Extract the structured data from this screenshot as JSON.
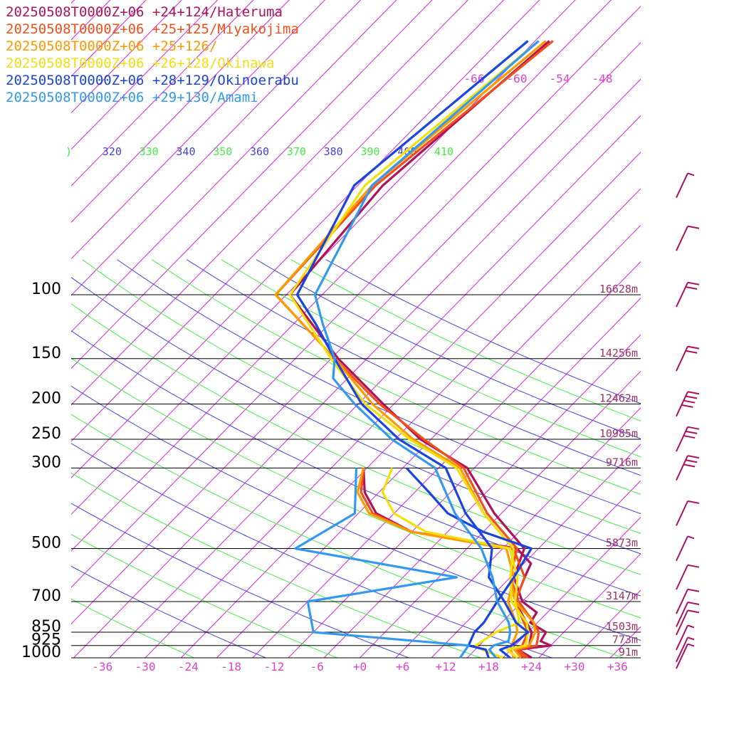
{
  "chart_data": {
    "type": "line",
    "title": "",
    "xlabel": "",
    "ylabel": "",
    "x_unit": "°C",
    "y_unit": "hPa",
    "y_scale": "log",
    "xlim": [
      -40,
      40
    ],
    "ylim": [
      1000,
      100
    ],
    "skew": true,
    "x_ticks": [
      "-36",
      "-30",
      "-24",
      "-18",
      "-12",
      "-6",
      "+0",
      "+6",
      "+12",
      "+18",
      "+24",
      "+30",
      "+36"
    ],
    "pressure_levels": [
      {
        "p": 100,
        "label": "100",
        "height": "16628m"
      },
      {
        "p": 150,
        "label": "150",
        "height": "14256m"
      },
      {
        "p": 200,
        "label": "200",
        "height": "12462m"
      },
      {
        "p": 250,
        "label": "250",
        "height": "10985m"
      },
      {
        "p": 300,
        "label": "300",
        "height": "9716m"
      },
      {
        "p": 500,
        "label": "500",
        "height": "5873m"
      },
      {
        "p": 700,
        "label": "700",
        "height": "3147m"
      },
      {
        "p": 850,
        "label": "850",
        "height": "1503m"
      },
      {
        "p": 925,
        "label": "925",
        "height": "773m"
      },
      {
        "p": 1000,
        "label": "1000",
        "height": "91m"
      }
    ],
    "isotherm_labels": [
      "-66",
      "-60",
      "-54",
      "-48"
    ],
    "theta_labels": [
      ")",
      "320",
      "330",
      "340",
      "350",
      "360",
      "370",
      "380",
      "390",
      "400",
      "410"
    ],
    "colors": {
      "grid": "#000000",
      "isotherm": "#dd22dd",
      "tick_label": "#dd44cc",
      "height_label": "#993366",
      "theta_green": "#44ee44",
      "theta_blue": "#4444dd",
      "wind_barb": "#aa1166"
    },
    "legend_position": "top-left",
    "series": [
      {
        "name": "20250508T0000Z+06 +24+124/Hateruma",
        "color": "#b0125a",
        "temperature": [
          [
            1000,
            24
          ],
          [
            950,
            21
          ],
          [
            925,
            25
          ],
          [
            900,
            23
          ],
          [
            850,
            22.5
          ],
          [
            800,
            19
          ],
          [
            750,
            18.5
          ],
          [
            700,
            15
          ],
          [
            600,
            10.5
          ],
          [
            500,
            8
          ],
          [
            400,
            -1
          ],
          [
            300,
            -11
          ],
          [
            250,
            -21.5
          ],
          [
            200,
            -31.5
          ],
          [
            150,
            -44
          ],
          [
            100,
            -59.5
          ],
          [
            50,
            -61.5
          ],
          [
            20,
            -58
          ]
        ],
        "dewpoint": [
          [
            1000,
            24
          ],
          [
            950,
            21
          ],
          [
            925,
            22
          ],
          [
            850,
            20.5
          ],
          [
            700,
            14
          ],
          [
            600,
            12
          ],
          [
            550,
            11
          ],
          [
            500,
            7
          ],
          [
            450,
            -10
          ],
          [
            400,
            -17.5
          ],
          [
            350,
            -22
          ],
          [
            300,
            -25.5
          ]
        ]
      },
      {
        "name": "20250508T0000Z+06 +25+125/Miyakojima",
        "color": "#f0501a",
        "temperature": [
          [
            1000,
            23.5
          ],
          [
            950,
            21
          ],
          [
            925,
            23
          ],
          [
            850,
            21.5
          ],
          [
            800,
            19.5
          ],
          [
            700,
            14.5
          ],
          [
            600,
            10
          ],
          [
            500,
            7
          ],
          [
            400,
            -2
          ],
          [
            300,
            -11.5
          ],
          [
            250,
            -21
          ],
          [
            200,
            -32
          ],
          [
            150,
            -44.5
          ],
          [
            100,
            -61.5
          ],
          [
            50,
            -62.5
          ],
          [
            20,
            -57.5
          ]
        ],
        "dewpoint": [
          [
            1000,
            23
          ],
          [
            950,
            20.5
          ],
          [
            925,
            21
          ],
          [
            850,
            20
          ],
          [
            700,
            14
          ],
          [
            600,
            12
          ],
          [
            500,
            6.5
          ],
          [
            450,
            -10
          ],
          [
            400,
            -18
          ],
          [
            350,
            -22.5
          ],
          [
            300,
            -25.5
          ]
        ]
      },
      {
        "name": "20250508T0000Z+06 +25+126/",
        "color": "#ff9900",
        "temperature": [
          [
            1000,
            22.5
          ],
          [
            950,
            20.5
          ],
          [
            925,
            22
          ],
          [
            850,
            21
          ],
          [
            800,
            19.5
          ],
          [
            700,
            14
          ],
          [
            600,
            10
          ],
          [
            500,
            6.5
          ],
          [
            400,
            -2.5
          ],
          [
            300,
            -12
          ],
          [
            250,
            -22.5
          ],
          [
            200,
            -33
          ],
          [
            150,
            -44.5
          ],
          [
            100,
            -61.5
          ],
          [
            50,
            -63
          ],
          [
            20,
            -58.5
          ]
        ],
        "dewpoint": [
          [
            1000,
            21.5
          ],
          [
            950,
            20
          ],
          [
            925,
            19.5
          ],
          [
            850,
            18.5
          ],
          [
            800,
            17
          ],
          [
            700,
            13
          ],
          [
            600,
            10.5
          ],
          [
            500,
            5.5
          ],
          [
            450,
            -10
          ],
          [
            400,
            -18.5
          ],
          [
            350,
            -23
          ],
          [
            300,
            -25.5
          ]
        ]
      },
      {
        "name": "20250508T0000Z+06 +26+128/Okinawa",
        "color": "#f0e010",
        "temperature": [
          [
            1000,
            22
          ],
          [
            950,
            19.5
          ],
          [
            925,
            21.5
          ],
          [
            850,
            20
          ],
          [
            800,
            18.5
          ],
          [
            700,
            13.5
          ],
          [
            600,
            10
          ],
          [
            500,
            6.5
          ],
          [
            400,
            -2.5
          ],
          [
            300,
            -12.5
          ],
          [
            250,
            -23
          ],
          [
            200,
            -34
          ],
          [
            150,
            -45
          ],
          [
            100,
            -59.5
          ],
          [
            50,
            -64
          ],
          [
            20,
            -59.5
          ]
        ],
        "dewpoint": [
          [
            1000,
            20
          ],
          [
            950,
            16
          ],
          [
            925,
            14.5
          ],
          [
            850,
            15.5
          ],
          [
            800,
            17.5
          ],
          [
            700,
            14
          ],
          [
            600,
            11
          ],
          [
            500,
            6
          ],
          [
            450,
            -8
          ],
          [
            400,
            -15
          ],
          [
            350,
            -19.5
          ],
          [
            300,
            -21.5
          ]
        ]
      },
      {
        "name": "20250508T0000Z+06 +28+129/Okinoerabu",
        "color": "#1a44dd",
        "temperature": [
          [
            1000,
            21
          ],
          [
            950,
            18.5
          ],
          [
            925,
            19.5
          ],
          [
            850,
            20
          ],
          [
            800,
            17
          ],
          [
            700,
            12.5
          ],
          [
            600,
            7
          ],
          [
            500,
            3.5
          ],
          [
            400,
            -5
          ],
          [
            300,
            -14
          ],
          [
            250,
            -24.5
          ],
          [
            200,
            -34.5
          ],
          [
            150,
            -44.5
          ],
          [
            120,
            -52
          ],
          [
            100,
            -58.5
          ],
          [
            50,
            -65.5
          ],
          [
            20,
            -61
          ]
        ],
        "dewpoint": [
          [
            1000,
            18
          ],
          [
            950,
            16.5
          ],
          [
            925,
            13.5
          ],
          [
            850,
            12.5
          ],
          [
            800,
            12.5
          ],
          [
            700,
            11.5
          ],
          [
            600,
            10.5
          ],
          [
            500,
            9
          ],
          [
            450,
            0
          ],
          [
            400,
            -7.5
          ],
          [
            350,
            -13
          ],
          [
            300,
            -19.5
          ]
        ]
      },
      {
        "name": "20250508T0000Z+06 +29+130/Amami",
        "color": "#3399ee",
        "temperature": [
          [
            1000,
            19
          ],
          [
            950,
            17
          ],
          [
            925,
            17
          ],
          [
            900,
            18.5
          ],
          [
            850,
            17.5
          ],
          [
            800,
            16
          ],
          [
            700,
            11.5
          ],
          [
            600,
            7.5
          ],
          [
            500,
            2
          ],
          [
            400,
            -6.5
          ],
          [
            300,
            -15.5
          ],
          [
            250,
            -25.5
          ],
          [
            200,
            -35.5
          ],
          [
            170,
            -42
          ],
          [
            150,
            -44.5
          ],
          [
            120,
            -51
          ],
          [
            100,
            -56
          ],
          [
            50,
            -63
          ],
          [
            20,
            -59.5
          ]
        ],
        "dewpoint": [
          [
            1000,
            14
          ],
          [
            925,
            13.5
          ],
          [
            850,
            -10
          ],
          [
            700,
            -15
          ],
          [
            600,
            2.5
          ],
          [
            500,
            -24
          ],
          [
            400,
            -20.5
          ],
          [
            300,
            -26.5
          ]
        ]
      }
    ],
    "wind_barbs": [
      {
        "p": 990,
        "speed": "5-10 kt"
      },
      {
        "p": 950,
        "speed": "5 kt"
      },
      {
        "p": 880,
        "speed": "5 kt"
      },
      {
        "p": 800,
        "speed": "10 kt"
      },
      {
        "p": 760,
        "speed": "10 kt"
      },
      {
        "p": 700,
        "speed": "10 kt"
      },
      {
        "p": 600,
        "speed": "10 kt"
      },
      {
        "p": 500,
        "speed": "5 kt"
      },
      {
        "p": 400,
        "speed": "10 kt"
      },
      {
        "p": 300,
        "speed": "30 kt"
      },
      {
        "p": 250,
        "speed": "30 kt"
      },
      {
        "p": 200,
        "speed": "40 kt"
      },
      {
        "p": 150,
        "speed": "20 kt"
      },
      {
        "p": 100,
        "speed": "20 kt"
      },
      {
        "p": 70,
        "speed": "10 kt"
      },
      {
        "p": 50,
        "speed": "5 kt"
      }
    ]
  }
}
